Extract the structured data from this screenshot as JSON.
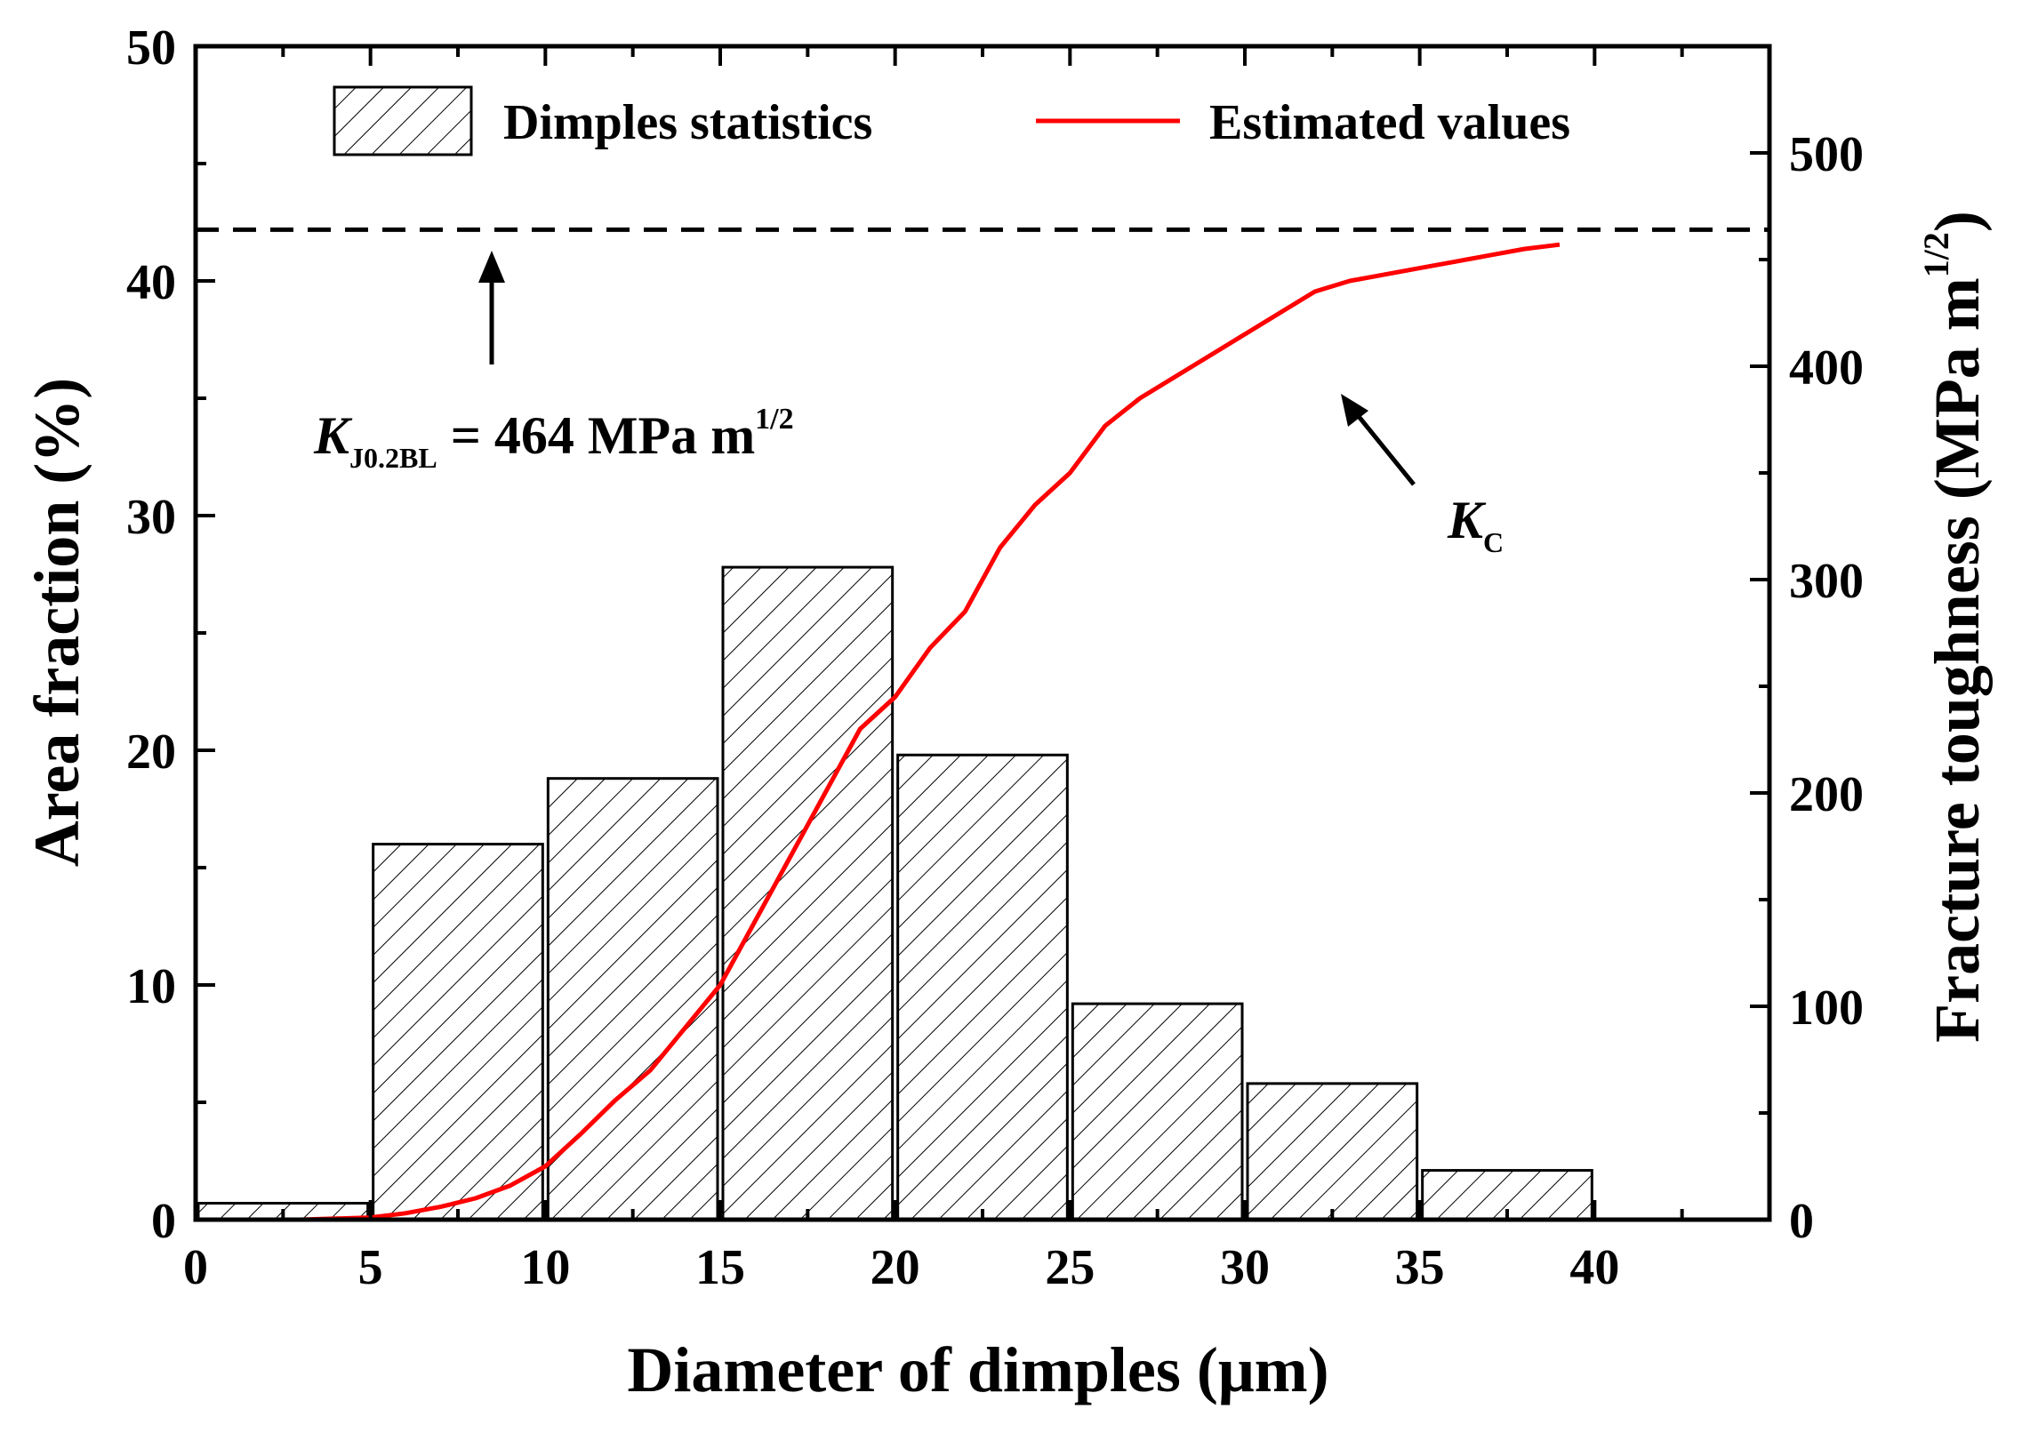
{
  "chart_data": {
    "type": "bar",
    "bins": [
      {
        "from": 0,
        "to": 5,
        "value": 0.7
      },
      {
        "from": 5,
        "to": 10,
        "value": 16.0
      },
      {
        "from": 10,
        "to": 15,
        "value": 18.8
      },
      {
        "from": 15,
        "to": 20,
        "value": 27.8
      },
      {
        "from": 20,
        "to": 25,
        "value": 19.8
      },
      {
        "from": 25,
        "to": 30,
        "value": 9.2
      },
      {
        "from": 30,
        "to": 35,
        "value": 5.8
      },
      {
        "from": 35,
        "to": 40,
        "value": 2.1
      }
    ],
    "series": [
      {
        "name": "Dimples statistics",
        "type": "bar",
        "axis": "left"
      },
      {
        "name": "Estimated values",
        "type": "line",
        "axis": "right",
        "color": "#ff0000",
        "x": [
          1,
          3,
          5,
          6,
          7,
          8,
          9,
          10,
          11,
          12,
          13,
          14,
          15,
          16,
          17,
          18,
          19,
          20,
          21,
          22,
          23,
          24,
          25,
          26,
          27,
          28,
          29,
          30,
          31,
          32,
          33,
          34,
          35,
          36,
          37,
          38,
          39
        ],
        "y": [
          0,
          0,
          1,
          3,
          6,
          10,
          16,
          25,
          40,
          56,
          70,
          90,
          110,
          140,
          170,
          200,
          230,
          245,
          268,
          285,
          315,
          335,
          350,
          372,
          385,
          395,
          405,
          415,
          425,
          435,
          440,
          443,
          446,
          449,
          452,
          455,
          457
        ]
      }
    ],
    "reference_line": {
      "value": 464,
      "axis": "right",
      "style": "dashed"
    },
    "title": "",
    "xlabel": "Diameter of dimples (μm)",
    "ylabel_left": "Area fraction (%)",
    "ylabel_right_main": "Fracture toughness (MPa m",
    "ylabel_right_sup": "1/2",
    "ylabel_right_close": ")",
    "xlim": [
      0,
      45
    ],
    "ylim_left": [
      0,
      50
    ],
    "ylim_right": [
      0,
      550
    ],
    "xticks": [
      "0",
      "5",
      "10",
      "15",
      "20",
      "25",
      "30",
      "35",
      "40"
    ],
    "xtick_values": [
      0,
      5,
      10,
      15,
      20,
      25,
      30,
      35,
      40
    ],
    "yticks_left": [
      "0",
      "10",
      "20",
      "30",
      "40",
      "50"
    ],
    "ytick_values_left": [
      0,
      10,
      20,
      30,
      40,
      50
    ],
    "yticks_right": [
      "0",
      "100",
      "200",
      "300",
      "400",
      "500"
    ],
    "ytick_values_right": [
      0,
      100,
      200,
      300,
      400,
      500
    ],
    "legend": {
      "position": "top",
      "entries": [
        "Dimples statistics",
        "Estimated values"
      ]
    },
    "annotations": {
      "kj_main": "K",
      "kj_sub": "J0.2BL",
      "kj_rest": " = 464 MPa m",
      "kj_sup": "1/2",
      "kc_main": "K",
      "kc_sub": "C"
    }
  }
}
